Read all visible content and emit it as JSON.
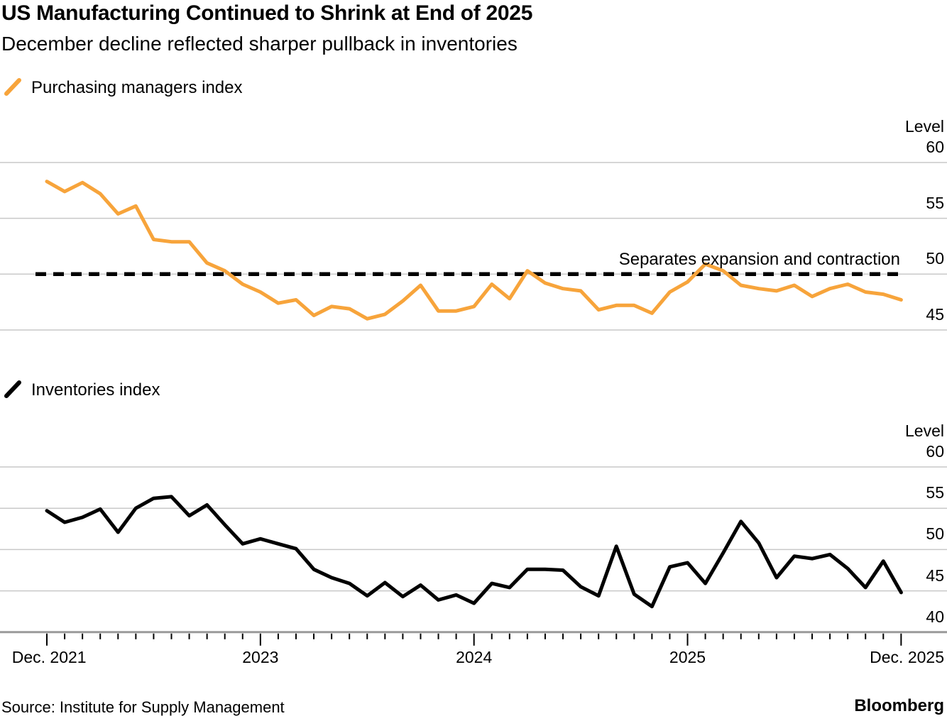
{
  "header": {
    "title": "US Manufacturing Continued to Shrink at End of 2025",
    "subtitle": "December decline reflected sharper pullback in inventories"
  },
  "colors": {
    "accent_orange": "#F7A43B",
    "line_black": "#000000",
    "gridline": "#C9C9C9",
    "axis_line": "#9A9A9A",
    "tick": "#000000"
  },
  "x_axis": {
    "months": [
      "Dec 2021",
      "Jan 2022",
      "Feb 2022",
      "Mar 2022",
      "Apr 2022",
      "May 2022",
      "Jun 2022",
      "Jul 2022",
      "Aug 2022",
      "Sep 2022",
      "Oct 2022",
      "Nov 2022",
      "Dec 2022",
      "Jan 2023",
      "Feb 2023",
      "Mar 2023",
      "Apr 2023",
      "May 2023",
      "Jun 2023",
      "Jul 2023",
      "Aug 2023",
      "Sep 2023",
      "Oct 2023",
      "Nov 2023",
      "Dec 2023",
      "Jan 2024",
      "Feb 2024",
      "Mar 2024",
      "Apr 2024",
      "May 2024",
      "Jun 2024",
      "Jul 2024",
      "Aug 2024",
      "Sep 2024",
      "Oct 2024",
      "Nov 2024",
      "Dec 2024",
      "Jan 2025",
      "Feb 2025",
      "Mar 2025",
      "Apr 2025",
      "May 2025",
      "Jun 2025",
      "Jul 2025",
      "Aug 2025",
      "Sep 2025",
      "Oct 2025",
      "Nov 2025",
      "Dec 2025"
    ],
    "tick_labels": [
      {
        "label": "Dec. 2021",
        "month": 0
      },
      {
        "label": "2023",
        "month": 12
      },
      {
        "label": "2024",
        "month": 24
      },
      {
        "label": "2025",
        "month": 36
      },
      {
        "label": "Dec. 2025",
        "month": 48
      }
    ],
    "major_tick_every": 12
  },
  "chart_data": [
    {
      "type": "line",
      "title": "Purchasing managers index",
      "color": "#F7A43B",
      "ylabel": "Level",
      "yticks": [
        60,
        55,
        50,
        45
      ],
      "ylim": [
        43.5,
        62
      ],
      "grid": true,
      "reference_line": {
        "value": 50,
        "style": "dashed",
        "label": "Separates expansion and contraction"
      },
      "x_start": "Dec 2021",
      "x_end": "Dec 2025",
      "values": [
        58.3,
        57.4,
        58.2,
        57.2,
        55.4,
        56.1,
        53.1,
        52.9,
        52.9,
        51.0,
        50.3,
        49.1,
        48.4,
        47.4,
        47.7,
        46.3,
        47.1,
        46.9,
        46.0,
        46.4,
        47.6,
        49.0,
        46.7,
        46.7,
        47.1,
        49.1,
        47.8,
        50.3,
        49.2,
        48.7,
        48.5,
        46.8,
        47.2,
        47.2,
        46.5,
        48.4,
        49.3,
        50.9,
        50.3,
        49.0,
        48.7,
        48.5,
        49.0,
        48.0,
        48.7,
        49.1,
        48.4,
        48.2,
        47.7
      ]
    },
    {
      "type": "line",
      "title": "Inventories index",
      "color": "#000000",
      "ylabel": "Level",
      "yticks": [
        60,
        55,
        50,
        45,
        40
      ],
      "ylim": [
        38,
        62
      ],
      "grid": true,
      "x_start": "Dec 2021",
      "x_end": "Dec 2025",
      "values": [
        54.7,
        53.3,
        53.9,
        54.9,
        52.1,
        55.0,
        56.2,
        56.4,
        54.1,
        55.4,
        53.0,
        50.7,
        51.3,
        50.7,
        50.1,
        47.6,
        46.6,
        45.9,
        44.4,
        46.0,
        44.3,
        45.7,
        43.9,
        44.5,
        43.5,
        45.9,
        45.4,
        47.6,
        47.6,
        47.5,
        45.5,
        44.4,
        50.4,
        44.6,
        43.1,
        47.9,
        48.4,
        45.9,
        49.6,
        53.4,
        50.8,
        46.6,
        49.2,
        48.9,
        49.4,
        47.7,
        45.4,
        48.6,
        44.8
      ]
    }
  ],
  "footer": {
    "source": "Source: Institute for Supply Management",
    "brand": "Bloomberg"
  }
}
